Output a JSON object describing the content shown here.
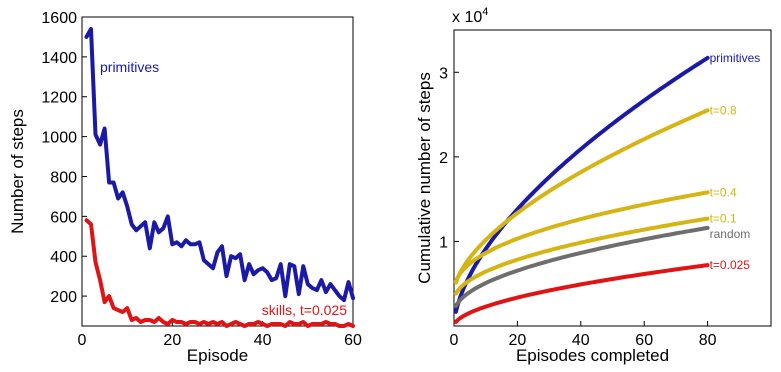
{
  "chart_data": [
    {
      "type": "line",
      "title": "",
      "xlabel": "Episode",
      "ylabel": "Number of steps",
      "xlim": [
        0,
        60
      ],
      "ylim": [
        50,
        1600
      ],
      "xticks": [
        0,
        20,
        40,
        60
      ],
      "yticks": [
        200,
        400,
        600,
        800,
        1000,
        1200,
        1400,
        1600
      ],
      "grid": false,
      "series": [
        {
          "name": "primitives",
          "color": "#1a1aa6",
          "x": [
            1,
            2,
            3,
            4,
            5,
            6,
            7,
            8,
            9,
            10,
            11,
            12,
            13,
            14,
            15,
            16,
            17,
            18,
            19,
            20,
            21,
            22,
            23,
            24,
            25,
            26,
            27,
            28,
            29,
            30,
            31,
            32,
            33,
            34,
            35,
            36,
            37,
            38,
            39,
            40,
            41,
            42,
            43,
            44,
            45,
            46,
            47,
            48,
            49,
            50,
            51,
            52,
            53,
            54,
            55,
            56,
            57,
            58,
            59,
            60
          ],
          "values": [
            1500,
            1540,
            1010,
            960,
            1040,
            770,
            770,
            690,
            720,
            650,
            560,
            530,
            550,
            570,
            440,
            570,
            520,
            540,
            600,
            460,
            470,
            450,
            480,
            460,
            460,
            470,
            380,
            360,
            340,
            420,
            450,
            300,
            400,
            390,
            410,
            280,
            360,
            310,
            330,
            340,
            320,
            280,
            290,
            360,
            200,
            360,
            350,
            210,
            350,
            260,
            240,
            230,
            280,
            220,
            260,
            230,
            200,
            180,
            270,
            190
          ]
        },
        {
          "name": "skills, t=0.025",
          "color": "#e01414",
          "x": [
            1,
            2,
            3,
            4,
            5,
            6,
            7,
            8,
            9,
            10,
            11,
            12,
            13,
            14,
            15,
            16,
            17,
            18,
            19,
            20,
            21,
            22,
            23,
            24,
            25,
            26,
            27,
            28,
            29,
            30,
            31,
            32,
            33,
            34,
            35,
            36,
            37,
            38,
            39,
            40,
            41,
            42,
            43,
            44,
            45,
            46,
            47,
            48,
            49,
            50,
            51,
            52,
            53,
            54,
            55,
            56,
            57,
            58,
            59,
            60
          ],
          "values": [
            580,
            560,
            370,
            280,
            170,
            200,
            140,
            130,
            120,
            140,
            80,
            90,
            70,
            80,
            80,
            70,
            90,
            70,
            60,
            80,
            70,
            70,
            60,
            70,
            70,
            60,
            70,
            60,
            70,
            60,
            70,
            50,
            60,
            70,
            60,
            50,
            60,
            60,
            70,
            60,
            50,
            60,
            60,
            60,
            50,
            70,
            60,
            60,
            70,
            50,
            60,
            60,
            60,
            70,
            60,
            60,
            50,
            50,
            60,
            50
          ]
        }
      ]
    },
    {
      "type": "line",
      "title": "",
      "xlabel": "Episodes completed",
      "ylabel": "Cumulative number of steps",
      "y_multiplier_label": "x 10",
      "y_multiplier_exponent": "4",
      "xlim": [
        0,
        100
      ],
      "ylim": [
        0,
        3.5
      ],
      "xticks": [
        0,
        20,
        40,
        60,
        80
      ],
      "yticks": [
        1,
        2,
        3
      ],
      "grid": false,
      "series": [
        {
          "name": "primitives",
          "color": "#1a1aa6",
          "x_end": 80,
          "a": 0.32,
          "b": 0.0,
          "p": 0.6,
          "values_at_80": 3.17
        },
        {
          "name": "t=0.8",
          "color": "#d4b514",
          "x_end": 80,
          "a": 0.16,
          "b": 0.4,
          "p": 0.6,
          "values_at_80": 2.55
        },
        {
          "name": "t=0.4",
          "color": "#d4b514",
          "x_end": 80,
          "a": 0.17,
          "b": 0.4,
          "p": 0.45,
          "values_at_80": 1.58
        },
        {
          "name": "t=0.1",
          "color": "#d4b514",
          "x_end": 80,
          "a": 0.085,
          "b": 0.3,
          "p": 0.5,
          "values_at_80": 1.27
        },
        {
          "name": "random",
          "color": "#6e6e6e",
          "x_end": 80,
          "a": 0.105,
          "b": 0.15,
          "p": 0.5,
          "values_at_80": 1.16
        },
        {
          "name": "t=0.025",
          "color": "#e01414",
          "x_end": 80,
          "a": 0.046,
          "b": 0.0,
          "p": 0.55,
          "values_at_80": 0.72
        }
      ]
    }
  ]
}
